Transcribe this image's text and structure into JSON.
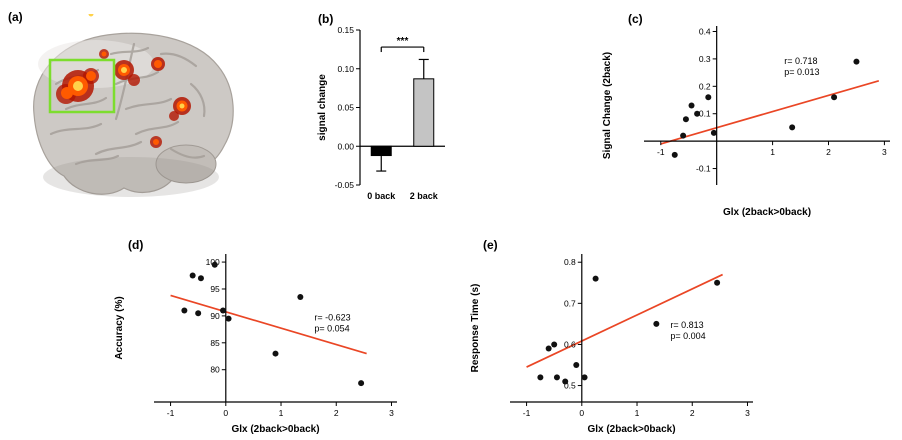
{
  "figure": {
    "panel_labels": {
      "a": "(a)",
      "b": "(b)",
      "c": "(c)",
      "d": "(d)",
      "e": "(e)"
    }
  },
  "colors": {
    "regression_line": "#ea4625",
    "point": "#111111",
    "axis": "#000000",
    "bar_0back": "#000000",
    "bar_2back": "#c4c4c4",
    "activation_outer": "#b31500",
    "activation_mid": "#ff5a00",
    "activation_core": "#ffd24a",
    "roi_box": "#7ddd2e",
    "brain_gray": "#cdc9c5"
  },
  "chart_data": [
    {
      "panel": "b",
      "type": "bar",
      "ylabel": "signal change",
      "categories": [
        "0 back",
        "2 back"
      ],
      "values": [
        -0.012,
        0.087
      ],
      "errors": [
        0.02,
        0.025
      ],
      "bar_colors": [
        "#000000",
        "#c4c4c4"
      ],
      "ylim": [
        -0.05,
        0.15
      ],
      "yticks": [
        -0.05,
        0,
        0.05,
        0.1,
        0.15
      ],
      "ytick_labels": [
        "-0.05",
        "0.00",
        "0.05",
        "0.10",
        "0.15"
      ],
      "significance": "***",
      "sig_y": 0.128,
      "pad": [
        14,
        12,
        36,
        48
      ]
    },
    {
      "panel": "c",
      "type": "scatter",
      "xlabel": "Glx (2back>0back)",
      "ylabel": "Signal Change (2back)",
      "xlim": [
        -1.3,
        3.1
      ],
      "ylim": [
        -0.16,
        0.42
      ],
      "xticks": [
        -1,
        1,
        2,
        3
      ],
      "yticks": [
        -0.1,
        0.1,
        0.2,
        0.3,
        0.4
      ],
      "vaxis_x": 0,
      "haxis_y": 0,
      "points": [
        [
          -0.75,
          -0.05
        ],
        [
          -0.6,
          0.02
        ],
        [
          -0.55,
          0.08
        ],
        [
          -0.45,
          0.13
        ],
        [
          -0.35,
          0.1
        ],
        [
          -0.15,
          0.16
        ],
        [
          -0.05,
          0.03
        ],
        [
          1.35,
          0.05
        ],
        [
          2.1,
          0.16
        ],
        [
          2.5,
          0.29
        ]
      ],
      "regression": [
        [
          -1,
          -0.01
        ],
        [
          2.9,
          0.22
        ]
      ],
      "stats": {
        "r": "r= 0.718",
        "p": "p= 0.013"
      },
      "stats_pos": [
        0.57,
        0.24
      ],
      "pad": [
        12,
        10,
        34,
        44
      ]
    },
    {
      "panel": "d",
      "type": "scatter",
      "xlabel": "Glx (2back>0back)",
      "ylabel": "Accuracy (%)",
      "xlim": [
        -1.3,
        3.1
      ],
      "ylim": [
        74,
        101.5
      ],
      "xticks": [
        -1,
        0,
        1,
        2,
        3
      ],
      "yticks": [
        80,
        85,
        90,
        95,
        100
      ],
      "vaxis_x": 0,
      "haxis_y": 74,
      "points": [
        [
          -0.75,
          91
        ],
        [
          -0.6,
          97.5
        ],
        [
          -0.5,
          90.5
        ],
        [
          -0.45,
          97
        ],
        [
          -0.2,
          99.5
        ],
        [
          -0.05,
          91
        ],
        [
          0.05,
          89.5
        ],
        [
          0.9,
          83
        ],
        [
          1.35,
          93.5
        ],
        [
          2.45,
          77.5
        ]
      ],
      "regression": [
        [
          -1,
          93.8
        ],
        [
          2.55,
          83
        ]
      ],
      "stats": {
        "r": "r= -0.623",
        "p": "p= 0.054"
      },
      "stats_pos": [
        0.66,
        0.45
      ],
      "pad": [
        8,
        10,
        34,
        42
      ]
    },
    {
      "panel": "e",
      "type": "scatter",
      "xlabel": "Glx (2back>0back)",
      "ylabel": "Response Time (s)",
      "xlim": [
        -1.3,
        3.1
      ],
      "ylim": [
        0.46,
        0.82
      ],
      "xticks": [
        -1,
        0,
        1,
        2,
        3
      ],
      "yticks": [
        0.5,
        0.6,
        0.7,
        0.8
      ],
      "vaxis_x": 0,
      "haxis_y": 0.46,
      "points": [
        [
          -0.75,
          0.52
        ],
        [
          -0.6,
          0.59
        ],
        [
          -0.5,
          0.6
        ],
        [
          -0.45,
          0.52
        ],
        [
          -0.3,
          0.51
        ],
        [
          -0.1,
          0.55
        ],
        [
          0.05,
          0.52
        ],
        [
          0.25,
          0.76
        ],
        [
          1.35,
          0.65
        ],
        [
          2.45,
          0.75
        ]
      ],
      "regression": [
        [
          -1,
          0.545
        ],
        [
          2.55,
          0.77
        ]
      ],
      "stats": {
        "r": "r= 0.813",
        "p": "p= 0.004"
      },
      "stats_pos": [
        0.66,
        0.5
      ],
      "pad": [
        8,
        10,
        34,
        42
      ]
    }
  ]
}
